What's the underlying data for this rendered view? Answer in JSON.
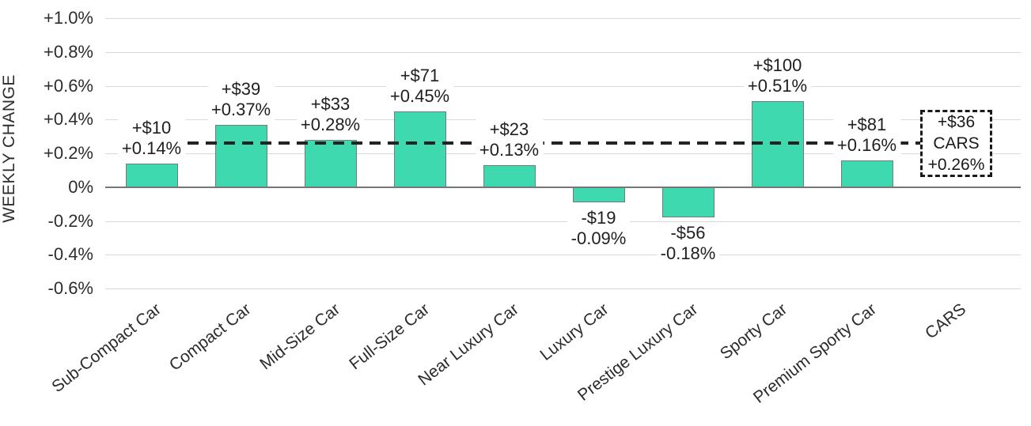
{
  "chart_data": {
    "type": "bar",
    "title": "",
    "ylabel": "WEEKLY CHANGE",
    "xlabel": "",
    "ylim": [
      -0.6,
      1.0
    ],
    "grid": true,
    "legend": false,
    "ytick_labels": [
      "+1.0%",
      "+0.8%",
      "+0.6%",
      "+0.4%",
      "+0.2%",
      "0%",
      "-0.2%",
      "-0.4%",
      "-0.6%"
    ],
    "ytick_values": [
      1.0,
      0.8,
      0.6,
      0.4,
      0.2,
      0,
      -0.2,
      -0.4,
      -0.6
    ],
    "categories": [
      "Sub-Compact Car",
      "Compact Car",
      "Mid-Size Car",
      "Full-Size Car",
      "Near Luxury Car",
      "Luxury Car",
      "Prestige Luxury Car",
      "Sporty Car",
      "Premium Sporty Car",
      "CARS"
    ],
    "bars": [
      {
        "category": "Sub-Compact Car",
        "dollar_label": "+$10",
        "percent_label": "+0.14%",
        "dollar": 10,
        "percent": 0.14
      },
      {
        "category": "Compact Car",
        "dollar_label": "+$39",
        "percent_label": "+0.37%",
        "dollar": 39,
        "percent": 0.37
      },
      {
        "category": "Mid-Size Car",
        "dollar_label": "+$33",
        "percent_label": "+0.28%",
        "dollar": 33,
        "percent": 0.28
      },
      {
        "category": "Full-Size Car",
        "dollar_label": "+$71",
        "percent_label": "+0.45%",
        "dollar": 71,
        "percent": 0.45
      },
      {
        "category": "Near Luxury Car",
        "dollar_label": "+$23",
        "percent_label": "+0.13%",
        "dollar": 23,
        "percent": 0.13
      },
      {
        "category": "Luxury Car",
        "dollar_label": "-$19",
        "percent_label": "-0.09%",
        "dollar": -19,
        "percent": -0.09
      },
      {
        "category": "Prestige Luxury Car",
        "dollar_label": "-$56",
        "percent_label": "-0.18%",
        "dollar": -56,
        "percent": -0.18
      },
      {
        "category": "Sporty Car",
        "dollar_label": "+$100",
        "percent_label": "+0.51%",
        "dollar": 100,
        "percent": 0.51
      },
      {
        "category": "Premium Sporty Car",
        "dollar_label": "+$81",
        "percent_label": "+0.16%",
        "dollar": 81,
        "percent": 0.16
      }
    ],
    "reference": {
      "category": "CARS",
      "percent": 0.26,
      "dollar": 36,
      "box_lines": [
        "+$36",
        "CARS",
        "+0.26%"
      ],
      "style": "dashed-line-with-box"
    },
    "colors": {
      "bar_fill": "#3ED9AE",
      "bar_border": "#6e7d78",
      "gridline": "#d9d9d9",
      "axis_line": "#767676",
      "dashed_line": "#232323",
      "box_border": "#1a1a1a",
      "text": "#262626"
    }
  }
}
